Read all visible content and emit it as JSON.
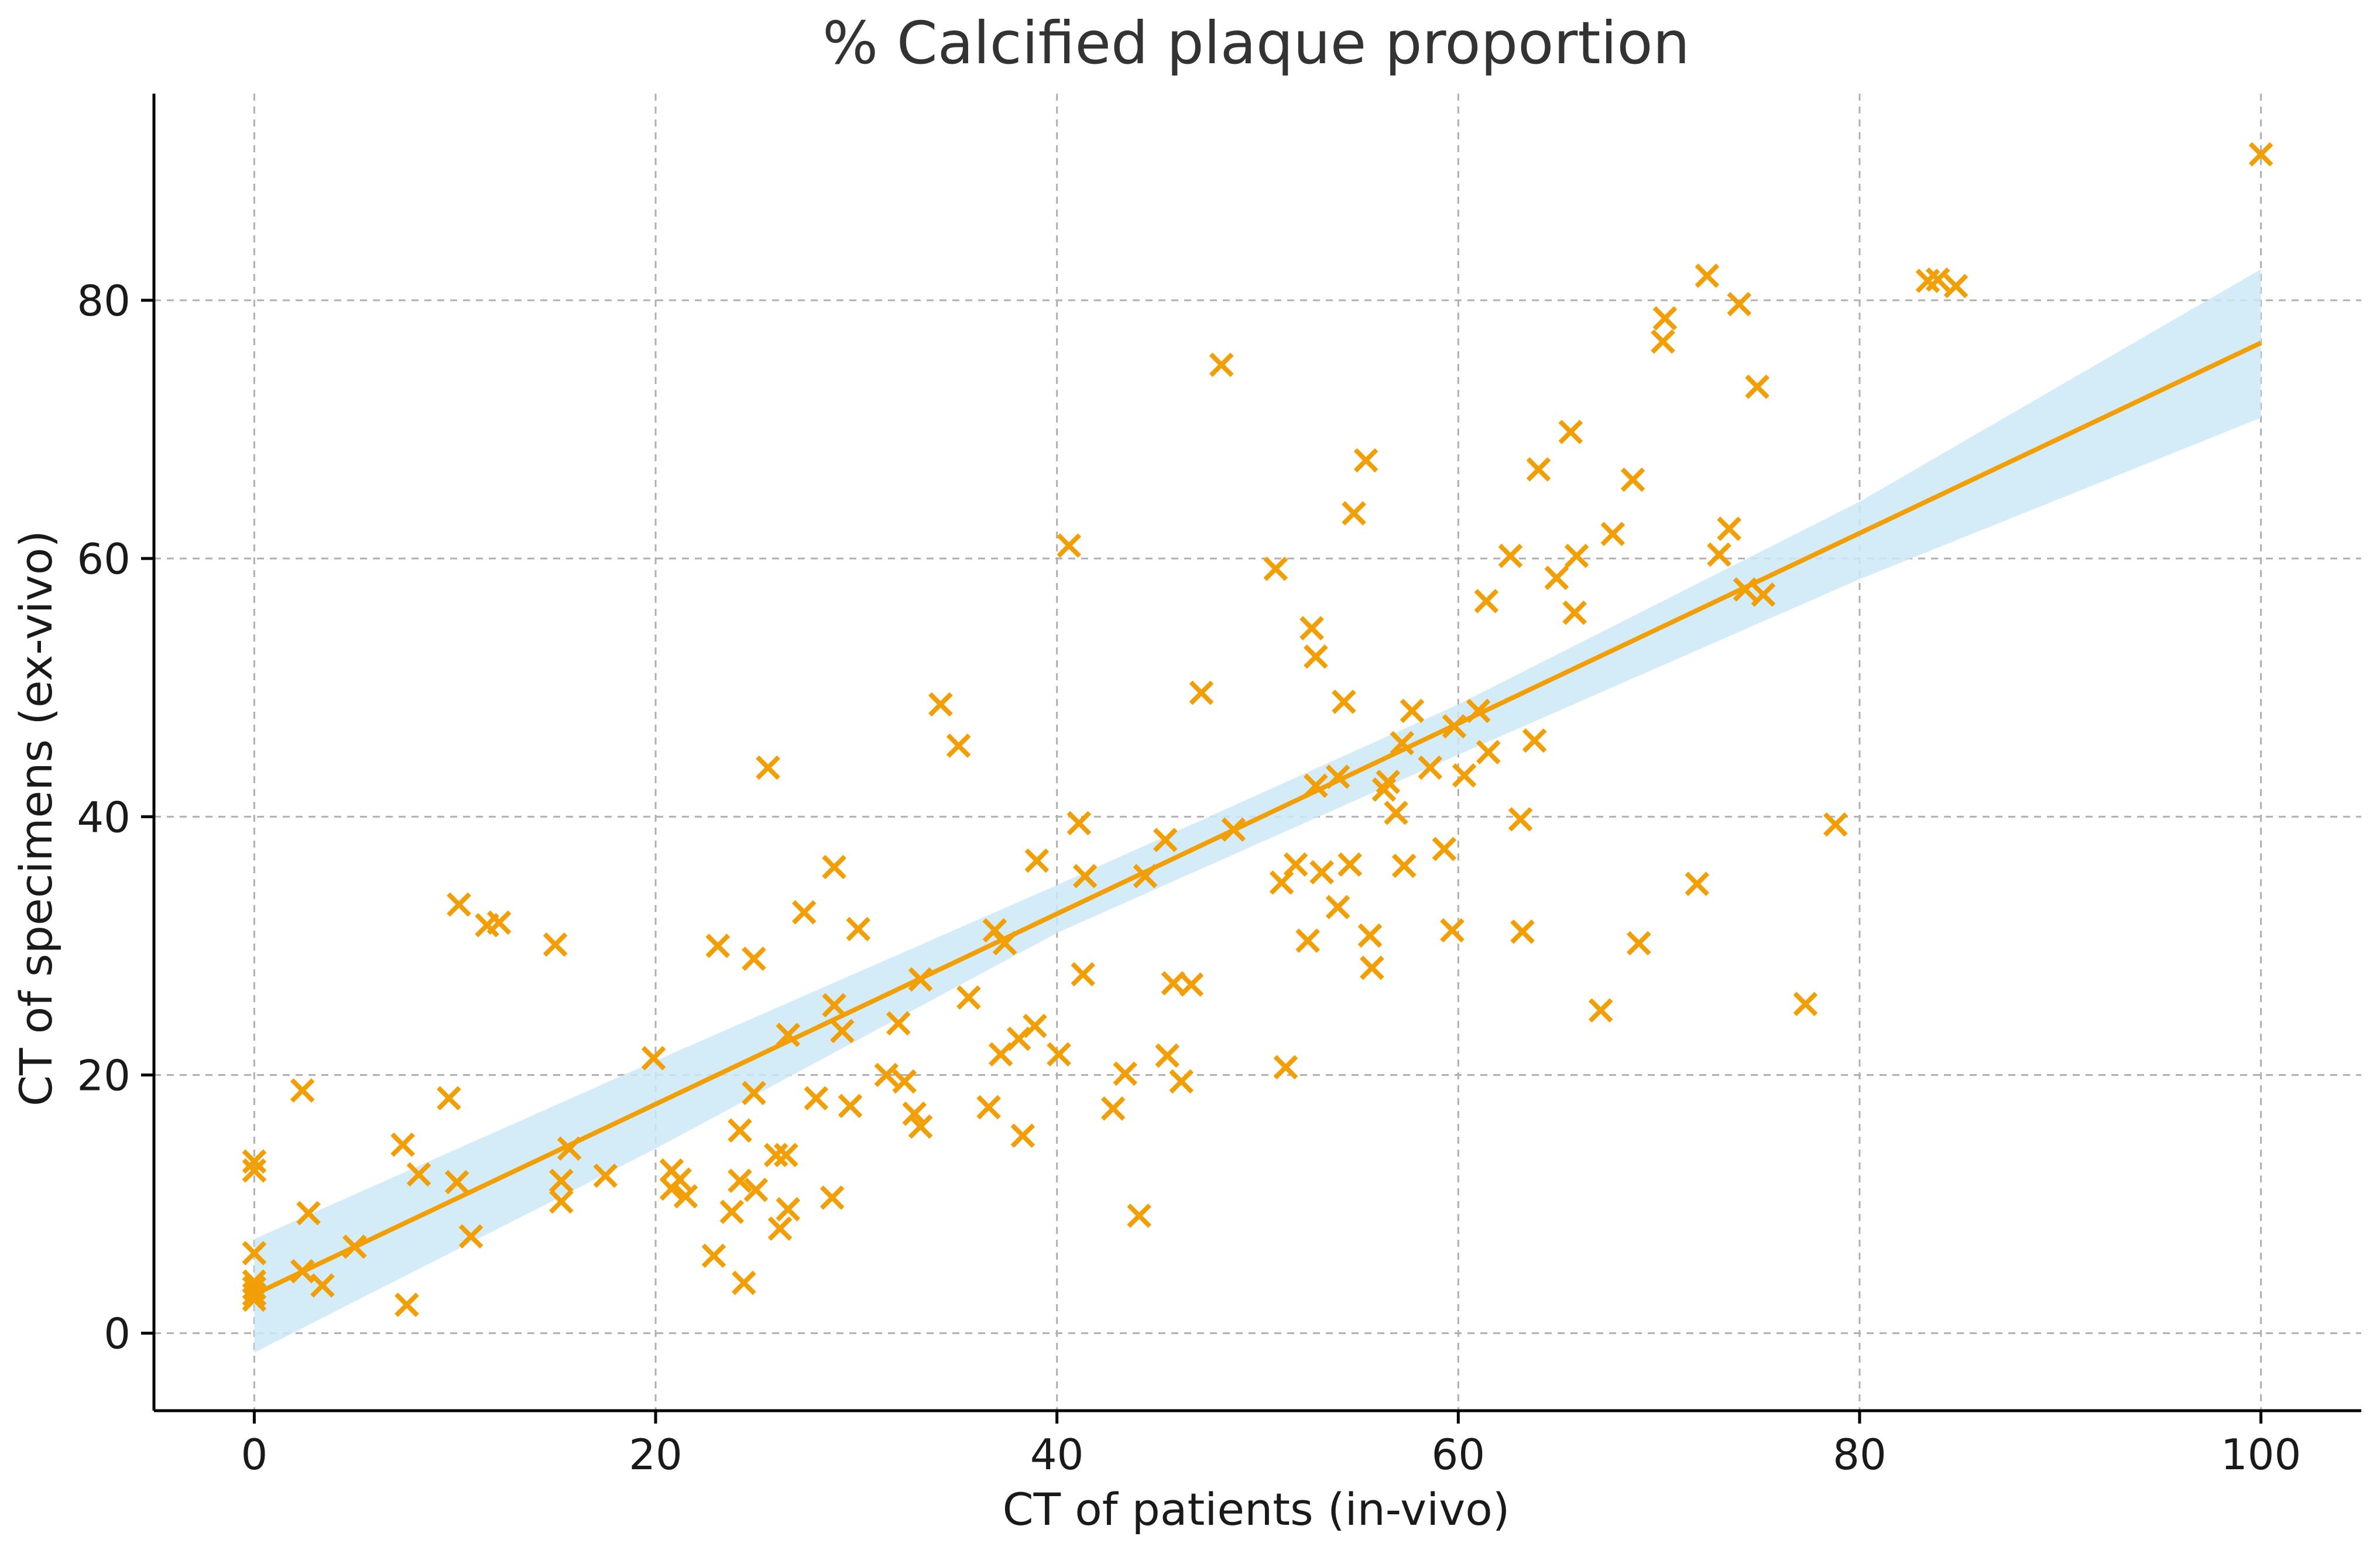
{
  "chart_data": {
    "type": "scatter",
    "title": "% Calcified plaque proportion",
    "xlabel": "CT of patients (in-vivo)",
    "ylabel": "CT of specimens (ex-vivo)",
    "xlim": [
      -5,
      105
    ],
    "ylim": [
      -6,
      96
    ],
    "xticks": [
      0,
      20,
      40,
      60,
      80,
      100
    ],
    "yticks": [
      0,
      20,
      40,
      60,
      80
    ],
    "grid": true,
    "marker": "x",
    "colors": {
      "points": "#f29e05",
      "line": "#f29e05",
      "band": "#cce9f6",
      "grid": "#b0b0b0",
      "axis": "#000000",
      "text": "#333333"
    },
    "regression": {
      "line": [
        [
          0,
          3.0
        ],
        [
          100,
          76.7
        ]
      ],
      "band_upper": [
        [
          0,
          7.3
        ],
        [
          20,
          21.1
        ],
        [
          40,
          34.7
        ],
        [
          60,
          48.7
        ],
        [
          80,
          64.4
        ],
        [
          100,
          82.4
        ]
      ],
      "band_lower": [
        [
          0,
          -1.5
        ],
        [
          20,
          14.3
        ],
        [
          40,
          31.0
        ],
        [
          60,
          44.8
        ],
        [
          80,
          58.4
        ],
        [
          100,
          70.9
        ]
      ]
    },
    "points": [
      [
        0,
        13.3
      ],
      [
        0,
        12.6
      ],
      [
        0,
        6.2
      ],
      [
        0,
        4.0
      ],
      [
        0,
        3.5
      ],
      [
        0,
        3.0
      ],
      [
        0,
        2.6
      ],
      [
        2.4,
        18.8
      ],
      [
        2.4,
        4.8
      ],
      [
        2.7,
        9.3
      ],
      [
        3.4,
        3.7
      ],
      [
        5.0,
        6.7
      ],
      [
        7.4,
        14.6
      ],
      [
        7.6,
        2.2
      ],
      [
        8.2,
        12.3
      ],
      [
        9.7,
        18.2
      ],
      [
        10.1,
        11.7
      ],
      [
        10.2,
        33.2
      ],
      [
        10.8,
        7.5
      ],
      [
        11.6,
        31.6
      ],
      [
        12.2,
        31.8
      ],
      [
        15.0,
        30.1
      ],
      [
        15.3,
        11.8
      ],
      [
        15.3,
        10.2
      ],
      [
        15.7,
        14.3
      ],
      [
        17.5,
        12.2
      ],
      [
        19.9,
        21.3
      ],
      [
        20.8,
        12.6
      ],
      [
        20.8,
        11.2
      ],
      [
        21.2,
        11.9
      ],
      [
        21.5,
        10.6
      ],
      [
        22.9,
        6.0
      ],
      [
        23.1,
        30.0
      ],
      [
        23.8,
        9.4
      ],
      [
        24.2,
        15.7
      ],
      [
        24.2,
        11.8
      ],
      [
        24.4,
        3.9
      ],
      [
        24.9,
        29.0
      ],
      [
        24.9,
        18.6
      ],
      [
        25.0,
        11.1
      ],
      [
        25.6,
        43.8
      ],
      [
        26.0,
        13.8
      ],
      [
        26.2,
        8.1
      ],
      [
        26.5,
        13.8
      ],
      [
        26.6,
        23.1
      ],
      [
        26.6,
        9.6
      ],
      [
        27.4,
        32.6
      ],
      [
        28.0,
        18.2
      ],
      [
        28.9,
        36.1
      ],
      [
        28.8,
        10.5
      ],
      [
        28.9,
        25.4
      ],
      [
        29.3,
        23.4
      ],
      [
        29.7,
        17.6
      ],
      [
        30.1,
        31.3
      ],
      [
        31.5,
        20.0
      ],
      [
        32.1,
        24.0
      ],
      [
        32.4,
        19.5
      ],
      [
        32.9,
        17.0
      ],
      [
        33.2,
        27.4
      ],
      [
        33.2,
        16.0
      ],
      [
        34.2,
        48.7
      ],
      [
        35.1,
        45.5
      ],
      [
        35.6,
        26.0
      ],
      [
        36.6,
        17.5
      ],
      [
        36.9,
        31.2
      ],
      [
        37.2,
        21.6
      ],
      [
        37.4,
        30.2
      ],
      [
        38.1,
        22.8
      ],
      [
        38.3,
        15.3
      ],
      [
        38.9,
        23.8
      ],
      [
        39.0,
        36.6
      ],
      [
        40.1,
        21.6
      ],
      [
        40.6,
        61.0
      ],
      [
        41.1,
        39.5
      ],
      [
        41.3,
        27.8
      ],
      [
        41.4,
        35.4
      ],
      [
        42.8,
        17.4
      ],
      [
        43.4,
        20.1
      ],
      [
        44.1,
        9.1
      ],
      [
        44.4,
        35.4
      ],
      [
        45.4,
        38.2
      ],
      [
        45.5,
        21.5
      ],
      [
        45.8,
        27.1
      ],
      [
        46.2,
        19.5
      ],
      [
        46.7,
        27.0
      ],
      [
        47.2,
        49.6
      ],
      [
        48.2,
        75.0
      ],
      [
        48.8,
        39.0
      ],
      [
        50.9,
        59.2
      ],
      [
        51.2,
        34.9
      ],
      [
        51.4,
        20.6
      ],
      [
        51.9,
        36.3
      ],
      [
        52.5,
        30.4
      ],
      [
        52.7,
        54.6
      ],
      [
        52.9,
        52.4
      ],
      [
        52.9,
        42.4
      ],
      [
        53.2,
        35.7
      ],
      [
        54.0,
        43.1
      ],
      [
        54.0,
        33.0
      ],
      [
        54.3,
        48.9
      ],
      [
        54.6,
        36.3
      ],
      [
        54.8,
        63.5
      ],
      [
        55.4,
        67.6
      ],
      [
        55.6,
        30.8
      ],
      [
        55.7,
        28.3
      ],
      [
        56.3,
        42.1
      ],
      [
        56.5,
        42.7
      ],
      [
        56.9,
        40.3
      ],
      [
        57.2,
        45.7
      ],
      [
        57.3,
        36.2
      ],
      [
        57.7,
        48.2
      ],
      [
        58.6,
        43.8
      ],
      [
        59.3,
        37.5
      ],
      [
        59.7,
        31.2
      ],
      [
        59.8,
        47.0
      ],
      [
        60.3,
        43.2
      ],
      [
        61.0,
        48.2
      ],
      [
        61.4,
        56.7
      ],
      [
        61.5,
        45.0
      ],
      [
        62.6,
        60.2
      ],
      [
        63.1,
        39.8
      ],
      [
        63.2,
        31.1
      ],
      [
        63.8,
        45.9
      ],
      [
        64.0,
        66.9
      ],
      [
        64.9,
        58.5
      ],
      [
        65.6,
        69.8
      ],
      [
        65.8,
        55.8
      ],
      [
        65.9,
        60.2
      ],
      [
        67.1,
        25.0
      ],
      [
        67.7,
        61.9
      ],
      [
        68.7,
        66.1
      ],
      [
        69.0,
        30.2
      ],
      [
        70.2,
        76.8
      ],
      [
        70.3,
        78.6
      ],
      [
        71.9,
        34.8
      ],
      [
        72.4,
        81.9
      ],
      [
        73.0,
        60.3
      ],
      [
        73.5,
        62.3
      ],
      [
        74.0,
        79.7
      ],
      [
        74.3,
        57.6
      ],
      [
        74.9,
        73.3
      ],
      [
        75.2,
        57.2
      ],
      [
        77.3,
        25.5
      ],
      [
        78.8,
        39.4
      ],
      [
        83.4,
        81.5
      ],
      [
        83.9,
        81.6
      ],
      [
        84.8,
        81.1
      ],
      [
        100.0,
        91.3
      ]
    ]
  }
}
